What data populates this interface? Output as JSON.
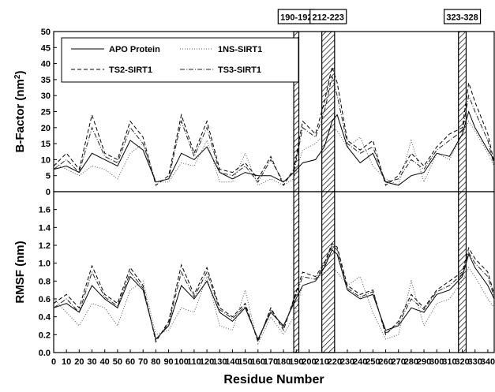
{
  "chart_data": [
    {
      "type": "line",
      "panel": "top",
      "ylabel": "B-Factor (nm",
      "ylabel_sup": "2",
      "ylabel_tail": ")",
      "xlim": [
        0,
        345
      ],
      "ylim": [
        0,
        50
      ],
      "yticks": [
        0,
        5,
        10,
        15,
        20,
        25,
        30,
        35,
        40,
        45,
        50
      ],
      "regions": [
        {
          "label": "190-192",
          "x0": 188,
          "x1": 192
        },
        {
          "label": "212-223",
          "x0": 210,
          "x1": 220
        },
        {
          "label": "323-328",
          "x0": 317,
          "x1": 323
        }
      ],
      "legend": {
        "placement": "top-left",
        "entries": [
          "APO Protein",
          "1NS-SIRT1",
          "TS2-SIRT1",
          "TS3-SIRT1"
        ]
      },
      "series": [
        {
          "name": "APO Protein",
          "style": "solid",
          "x": [
            0,
            10,
            20,
            30,
            40,
            50,
            60,
            70,
            80,
            90,
            100,
            110,
            120,
            130,
            140,
            150,
            160,
            170,
            180,
            188,
            195,
            205,
            212,
            218,
            222,
            230,
            240,
            250,
            260,
            270,
            280,
            290,
            300,
            310,
            320,
            325,
            330,
            340,
            345
          ],
          "y": [
            7,
            8,
            6,
            12,
            10,
            8,
            16,
            13,
            3,
            4,
            12,
            10,
            14,
            6,
            4,
            6,
            5,
            5,
            3,
            6,
            9,
            10,
            14,
            22,
            24,
            14,
            9,
            12,
            3,
            2,
            5,
            6,
            12,
            11,
            18,
            25,
            20,
            13,
            10
          ]
        },
        {
          "name": "1NS-SIRT1",
          "style": "dotted",
          "x": [
            0,
            10,
            20,
            30,
            40,
            50,
            60,
            70,
            80,
            90,
            100,
            110,
            120,
            130,
            140,
            150,
            160,
            170,
            180,
            188,
            195,
            205,
            212,
            218,
            222,
            230,
            240,
            250,
            260,
            270,
            280,
            290,
            300,
            310,
            320,
            325,
            330,
            340,
            345
          ],
          "y": [
            9,
            7,
            5,
            8,
            7,
            4,
            12,
            15,
            3,
            3,
            9,
            8,
            16,
            3,
            3,
            12,
            2,
            4,
            2,
            4,
            13,
            15,
            18,
            20,
            19,
            14,
            17,
            8,
            4,
            2,
            16,
            3,
            12,
            10,
            18,
            22,
            19,
            12,
            8
          ]
        },
        {
          "name": "TS2-SIRT1",
          "style": "dashed",
          "x": [
            0,
            10,
            20,
            30,
            40,
            50,
            60,
            70,
            80,
            90,
            100,
            110,
            120,
            130,
            140,
            150,
            160,
            170,
            180,
            188,
            195,
            205,
            212,
            218,
            222,
            230,
            240,
            250,
            260,
            270,
            280,
            290,
            300,
            310,
            320,
            325,
            330,
            340,
            345
          ],
          "y": [
            8,
            12,
            7,
            24,
            12,
            10,
            22,
            17,
            2,
            5,
            24,
            12,
            22,
            7,
            6,
            9,
            4,
            11,
            2,
            7,
            22,
            18,
            28,
            39,
            34,
            16,
            13,
            16,
            2,
            5,
            12,
            8,
            14,
            18,
            20,
            34,
            28,
            18,
            9
          ]
        },
        {
          "name": "TS3-SIRT1",
          "style": "dashdot",
          "x": [
            0,
            10,
            20,
            30,
            40,
            50,
            60,
            70,
            80,
            90,
            100,
            110,
            120,
            130,
            140,
            150,
            160,
            170,
            180,
            188,
            195,
            205,
            212,
            218,
            222,
            230,
            240,
            250,
            260,
            270,
            280,
            290,
            300,
            310,
            320,
            325,
            330,
            340,
            345
          ],
          "y": [
            7,
            10,
            6,
            20,
            11,
            9,
            20,
            15,
            3,
            4,
            22,
            11,
            20,
            6,
            5,
            8,
            3,
            10,
            3,
            6,
            20,
            17,
            25,
            36,
            30,
            15,
            12,
            14,
            3,
            4,
            10,
            7,
            13,
            16,
            19,
            30,
            25,
            16,
            8
          ]
        }
      ]
    },
    {
      "type": "line",
      "panel": "bottom",
      "ylabel": "RMSF (nm)",
      "xlabel": "Residue Number",
      "xlim": [
        0,
        345
      ],
      "ylim": [
        0,
        1.8
      ],
      "yticks": [
        0.0,
        0.2,
        0.4,
        0.6,
        0.8,
        1.0,
        1.2,
        1.4,
        1.6
      ],
      "xticks": [
        0,
        10,
        20,
        30,
        40,
        50,
        60,
        70,
        80,
        90,
        100,
        110,
        120,
        130,
        140,
        150,
        160,
        170,
        180,
        190,
        200,
        210,
        220,
        230,
        240,
        250,
        260,
        270,
        280,
        290,
        300,
        310,
        320,
        330,
        340
      ],
      "series": [
        {
          "name": "APO Protein",
          "style": "solid",
          "x": [
            0,
            10,
            20,
            30,
            40,
            50,
            60,
            70,
            80,
            90,
            100,
            110,
            120,
            130,
            140,
            150,
            160,
            170,
            180,
            188,
            195,
            205,
            212,
            218,
            222,
            230,
            240,
            250,
            260,
            270,
            280,
            290,
            300,
            310,
            320,
            325,
            330,
            340,
            345
          ],
          "y": [
            0.5,
            0.55,
            0.45,
            0.75,
            0.6,
            0.5,
            0.85,
            0.7,
            0.15,
            0.3,
            0.75,
            0.6,
            0.8,
            0.45,
            0.35,
            0.5,
            0.15,
            0.45,
            0.3,
            0.55,
            0.75,
            0.8,
            0.95,
            1.15,
            1.1,
            0.7,
            0.6,
            0.65,
            0.25,
            0.3,
            0.5,
            0.45,
            0.65,
            0.7,
            0.85,
            1.1,
            0.95,
            0.75,
            0.6
          ]
        },
        {
          "name": "1NS-SIRT1",
          "style": "dotted",
          "x": [
            0,
            10,
            20,
            30,
            40,
            50,
            60,
            70,
            80,
            90,
            100,
            110,
            120,
            130,
            140,
            150,
            160,
            170,
            180,
            188,
            195,
            205,
            212,
            218,
            222,
            230,
            240,
            250,
            260,
            270,
            280,
            290,
            300,
            310,
            320,
            325,
            330,
            340,
            345
          ],
          "y": [
            0.6,
            0.45,
            0.3,
            0.55,
            0.5,
            0.3,
            0.7,
            0.8,
            0.2,
            0.25,
            0.5,
            0.45,
            0.85,
            0.3,
            0.25,
            0.7,
            0.1,
            0.4,
            0.2,
            0.4,
            0.75,
            0.8,
            0.9,
            0.95,
            0.9,
            0.75,
            0.85,
            0.45,
            0.15,
            0.2,
            0.8,
            0.3,
            0.55,
            0.6,
            0.8,
            0.95,
            0.85,
            0.6,
            0.5
          ]
        },
        {
          "name": "TS2-SIRT1",
          "style": "dashed",
          "x": [
            0,
            10,
            20,
            30,
            40,
            50,
            60,
            70,
            80,
            90,
            100,
            110,
            120,
            130,
            140,
            150,
            160,
            170,
            180,
            188,
            195,
            205,
            212,
            218,
            222,
            230,
            240,
            250,
            260,
            270,
            280,
            290,
            300,
            310,
            320,
            325,
            330,
            340,
            345
          ],
          "y": [
            0.55,
            0.65,
            0.5,
            0.97,
            0.65,
            0.55,
            0.95,
            0.75,
            0.12,
            0.35,
            0.98,
            0.65,
            0.95,
            0.5,
            0.4,
            0.55,
            0.12,
            0.5,
            0.25,
            0.6,
            0.9,
            0.85,
            1.0,
            1.22,
            1.18,
            0.75,
            0.65,
            0.7,
            0.2,
            0.35,
            0.65,
            0.5,
            0.7,
            0.8,
            0.9,
            1.17,
            1.05,
            0.9,
            0.65
          ]
        },
        {
          "name": "TS3-SIRT1",
          "style": "dashdot",
          "x": [
            0,
            10,
            20,
            30,
            40,
            50,
            60,
            70,
            80,
            90,
            100,
            110,
            120,
            130,
            140,
            150,
            160,
            170,
            180,
            188,
            195,
            205,
            212,
            218,
            222,
            230,
            240,
            250,
            260,
            270,
            280,
            290,
            300,
            310,
            320,
            325,
            330,
            340,
            345
          ],
          "y": [
            0.5,
            0.6,
            0.45,
            0.9,
            0.62,
            0.52,
            0.9,
            0.72,
            0.14,
            0.32,
            0.9,
            0.62,
            0.9,
            0.48,
            0.38,
            0.52,
            0.14,
            0.48,
            0.28,
            0.58,
            0.85,
            0.82,
            0.98,
            1.2,
            1.15,
            0.72,
            0.62,
            0.68,
            0.22,
            0.32,
            0.6,
            0.48,
            0.68,
            0.75,
            0.88,
            1.12,
            1.0,
            0.85,
            0.62
          ]
        }
      ]
    }
  ]
}
